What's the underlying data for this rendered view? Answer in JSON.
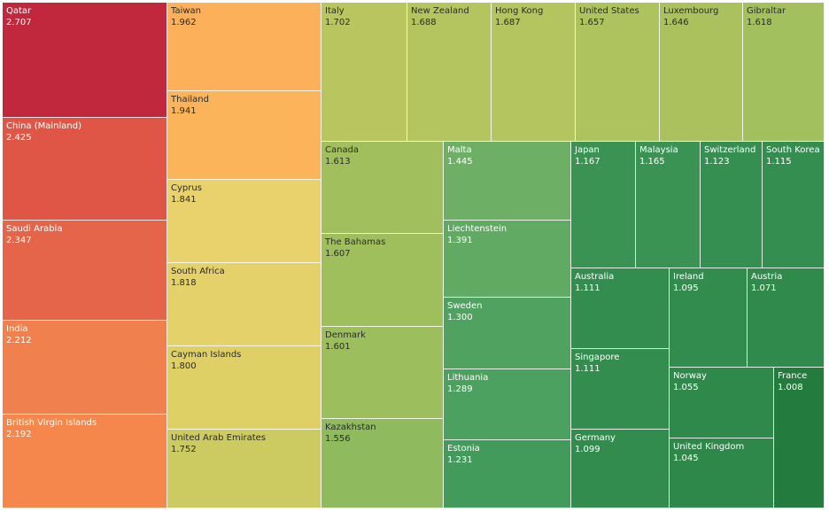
{
  "chart_data": {
    "type": "treemap",
    "items": [
      {
        "name": "Qatar",
        "value": "2.707",
        "color": "#c1283d"
      },
      {
        "name": "China (Mainland)",
        "value": "2.425",
        "color": "#df5647"
      },
      {
        "name": "Saudi Arabia",
        "value": "2.347",
        "color": "#e5654a"
      },
      {
        "name": "India",
        "value": "2.212",
        "color": "#f0804e"
      },
      {
        "name": "British Virgin Islands",
        "value": "2.192",
        "color": "#f5874d"
      },
      {
        "name": "Taiwan",
        "value": "1.962",
        "color": "#fbb059"
      },
      {
        "name": "Thailand",
        "value": "1.941",
        "color": "#fbb459"
      },
      {
        "name": "Cyprus",
        "value": "1.841",
        "color": "#e9d16b"
      },
      {
        "name": "South Africa",
        "value": "1.818",
        "color": "#e4d16a"
      },
      {
        "name": "Cayman Islands",
        "value": "1.800",
        "color": "#dfd066"
      },
      {
        "name": "United Arab Emirates",
        "value": "1.752",
        "color": "#cccb62"
      },
      {
        "name": "Italy",
        "value": "1.702",
        "color": "#b9c660"
      },
      {
        "name": "New Zealand",
        "value": "1.688",
        "color": "#b4c45f"
      },
      {
        "name": "Hong Kong",
        "value": "1.687",
        "color": "#b4c45f"
      },
      {
        "name": "United States",
        "value": "1.657",
        "color": "#aec35e"
      },
      {
        "name": "Luxembourg",
        "value": "1.646",
        "color": "#aac15e"
      },
      {
        "name": "Gibraltar",
        "value": "1.618",
        "color": "#a3c05e"
      },
      {
        "name": "Canada",
        "value": "1.613",
        "color": "#a1bf5d"
      },
      {
        "name": "The Bahamas",
        "value": "1.607",
        "color": "#9fbf5d"
      },
      {
        "name": "Denmark",
        "value": "1.601",
        "color": "#9cbe5d"
      },
      {
        "name": "Kazakhstan",
        "value": "1.556",
        "color": "#8fba5e"
      },
      {
        "name": "Malta",
        "value": "1.445",
        "color": "#6db065"
      },
      {
        "name": "Liechtenstein",
        "value": "1.391",
        "color": "#60aa64"
      },
      {
        "name": "Sweden",
        "value": "1.300",
        "color": "#4fa260"
      },
      {
        "name": "Lithuania",
        "value": "1.289",
        "color": "#4ca160"
      },
      {
        "name": "Estonia",
        "value": "1.231",
        "color": "#439b5b"
      },
      {
        "name": "Japan",
        "value": "1.167",
        "color": "#3a9352"
      },
      {
        "name": "Malaysia",
        "value": "1.165",
        "color": "#3a9352"
      },
      {
        "name": "Switzerland",
        "value": "1.123",
        "color": "#358f50"
      },
      {
        "name": "South Korea",
        "value": "1.115",
        "color": "#348e4f"
      },
      {
        "name": "Australia",
        "value": "1.111",
        "color": "#338d4f"
      },
      {
        "name": "Ireland",
        "value": "1.095",
        "color": "#318c4e"
      },
      {
        "name": "Austria",
        "value": "1.071",
        "color": "#2f8a4c"
      },
      {
        "name": "Singapore",
        "value": "1.111",
        "color": "#338d4f"
      },
      {
        "name": "Germany",
        "value": "1.099",
        "color": "#318c4e"
      },
      {
        "name": "Norway",
        "value": "1.055",
        "color": "#2e894b"
      },
      {
        "name": "United Kingdom",
        "value": "1.045",
        "color": "#2d884a"
      },
      {
        "name": "France",
        "value": "1.008",
        "color": "#237b3e"
      }
    ]
  }
}
